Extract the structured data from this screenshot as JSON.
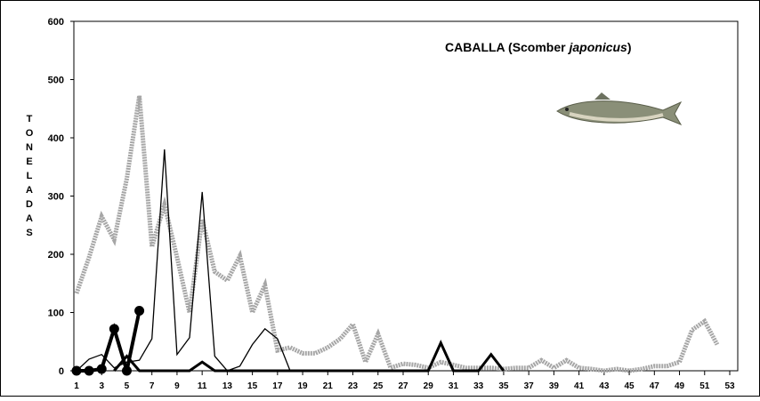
{
  "chart_data": {
    "type": "line",
    "title": [
      "CABALLA (Scomber ",
      "japonicus",
      ")"
    ],
    "y_label": "TONELADAS",
    "xlim": [
      1,
      53
    ],
    "xticks": [
      1,
      3,
      5,
      7,
      9,
      11,
      13,
      15,
      17,
      19,
      21,
      23,
      25,
      27,
      29,
      31,
      33,
      35,
      37,
      39,
      41,
      43,
      45,
      47,
      49,
      51,
      53
    ],
    "ylim": [
      0,
      600
    ],
    "yticks": [
      0,
      100,
      200,
      300,
      400,
      500,
      600
    ],
    "series": [
      {
        "color": "#a6a6a6",
        "width": 5,
        "markers": false,
        "x": [
          1,
          2,
          3,
          4,
          5,
          6,
          7,
          8,
          9,
          10,
          11,
          12,
          13,
          14,
          15,
          16,
          17,
          18,
          19,
          20,
          21,
          22,
          23,
          24,
          25,
          26,
          27,
          28,
          29,
          30,
          31,
          32,
          33,
          34,
          35,
          36,
          37,
          38,
          39,
          40,
          41,
          42,
          43,
          44,
          45,
          46,
          47,
          48,
          49,
          50,
          51,
          52
        ],
        "values": [
          133,
          195,
          265,
          225,
          330,
          472,
          213,
          285,
          195,
          100,
          260,
          170,
          155,
          197,
          100,
          147,
          35,
          40,
          30,
          30,
          40,
          55,
          80,
          15,
          63,
          5,
          12,
          10,
          5,
          15,
          10,
          5,
          5,
          5,
          3,
          5,
          5,
          18,
          5,
          18,
          5,
          3,
          0,
          3,
          0,
          3,
          8,
          8,
          15,
          70,
          85,
          45
        ]
      },
      {
        "color": "#000000",
        "width": 1.3,
        "markers": false,
        "x": [
          1,
          2,
          3,
          4,
          5,
          6,
          7,
          8,
          9,
          10,
          11,
          12,
          13,
          14,
          15,
          16,
          17,
          18
        ],
        "values": [
          0,
          20,
          28,
          5,
          15,
          18,
          55,
          380,
          28,
          57,
          307,
          25,
          0,
          8,
          45,
          72,
          55,
          0
        ]
      },
      {
        "color": "#000000",
        "width": 3,
        "markers": false,
        "x": [
          4,
          5,
          6,
          10,
          11,
          12,
          29,
          30,
          31,
          33,
          34,
          35
        ],
        "values": [
          0,
          25,
          0,
          0,
          15,
          0,
          0,
          48,
          0,
          0,
          28,
          0
        ]
      },
      {
        "color": "#000000",
        "width": 4,
        "markers": true,
        "x": [
          1,
          2,
          3,
          4,
          5,
          6
        ],
        "values": [
          0,
          0,
          3,
          72,
          0,
          103
        ]
      }
    ]
  }
}
